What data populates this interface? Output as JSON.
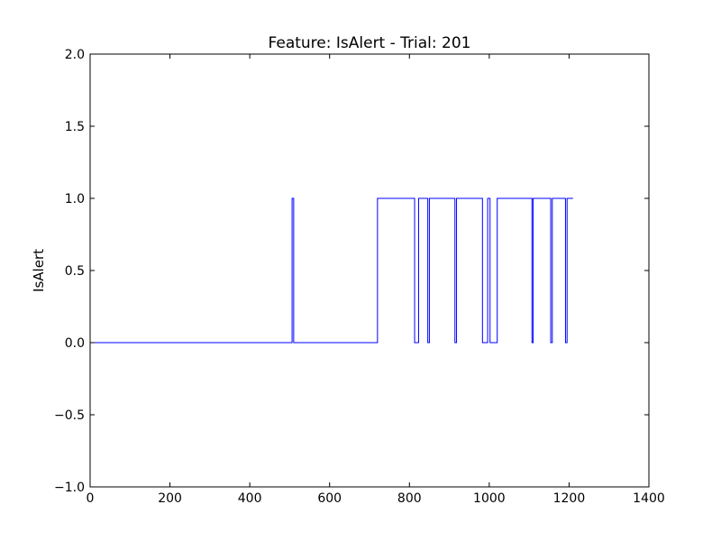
{
  "chart_data": {
    "type": "line",
    "title": "Feature: IsAlert - Trial: 201",
    "xlabel": "",
    "ylabel": "IsAlert",
    "xlim": [
      0,
      1400
    ],
    "ylim": [
      -1.0,
      2.0
    ],
    "x_ticks": [
      0,
      200,
      400,
      600,
      800,
      1000,
      1200,
      1400
    ],
    "x_tick_labels": [
      "0",
      "200",
      "400",
      "600",
      "800",
      "1000",
      "1200",
      "1400"
    ],
    "y_ticks": [
      -1.0,
      -0.5,
      0.0,
      0.5,
      1.0,
      1.5,
      2.0
    ],
    "y_tick_labels": [
      "−1.0",
      "−0.5",
      "0.0",
      "0.5",
      "1.0",
      "1.5",
      "2.0"
    ],
    "grid": false,
    "series": [
      {
        "color": "#0000ff",
        "segments": [
          {
            "start": 0,
            "end": 506,
            "value": 0
          },
          {
            "start": 506,
            "end": 510,
            "value": 1
          },
          {
            "start": 510,
            "end": 720,
            "value": 0
          },
          {
            "start": 720,
            "end": 813,
            "value": 1
          },
          {
            "start": 813,
            "end": 823,
            "value": 0
          },
          {
            "start": 823,
            "end": 846,
            "value": 1
          },
          {
            "start": 846,
            "end": 850,
            "value": 0
          },
          {
            "start": 850,
            "end": 914,
            "value": 1
          },
          {
            "start": 914,
            "end": 918,
            "value": 0
          },
          {
            "start": 918,
            "end": 983,
            "value": 1
          },
          {
            "start": 983,
            "end": 996,
            "value": 0
          },
          {
            "start": 996,
            "end": 1002,
            "value": 1
          },
          {
            "start": 1002,
            "end": 1020,
            "value": 0
          },
          {
            "start": 1020,
            "end": 1107,
            "value": 1
          },
          {
            "start": 1107,
            "end": 1110,
            "value": 0
          },
          {
            "start": 1110,
            "end": 1154,
            "value": 1
          },
          {
            "start": 1154,
            "end": 1158,
            "value": 0
          },
          {
            "start": 1158,
            "end": 1191,
            "value": 1
          },
          {
            "start": 1191,
            "end": 1195,
            "value": 0
          },
          {
            "start": 1195,
            "end": 1210,
            "value": 1
          }
        ]
      }
    ]
  }
}
